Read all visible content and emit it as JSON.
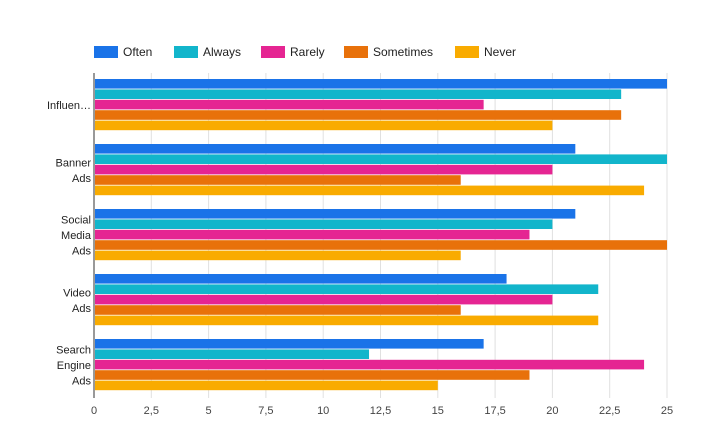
{
  "chart_data": {
    "type": "bar",
    "orientation": "horizontal",
    "title": "",
    "xlabel": "",
    "ylabel": "",
    "categories": [
      [
        "Influen…"
      ],
      [
        "Banner",
        "Ads"
      ],
      [
        "Social",
        "Media",
        "Ads"
      ],
      [
        "Video",
        "Ads"
      ],
      [
        "Search",
        "Engine",
        "Ads"
      ]
    ],
    "series": [
      {
        "name": "Often",
        "color": "#1a73e8",
        "values": [
          25,
          21,
          21,
          18,
          17
        ]
      },
      {
        "name": "Always",
        "color": "#12b5cb",
        "values": [
          23,
          25,
          20,
          22,
          12
        ]
      },
      {
        "name": "Rarely",
        "color": "#e52592",
        "values": [
          17,
          20,
          19,
          20,
          24
        ]
      },
      {
        "name": "Sometimes",
        "color": "#e8710a",
        "values": [
          23,
          16,
          25,
          16,
          19
        ]
      },
      {
        "name": "Never",
        "color": "#f9ab00",
        "values": [
          20,
          24,
          16,
          22,
          15
        ]
      }
    ],
    "xlim": [
      0,
      25
    ],
    "xticks": [
      0,
      2.5,
      5,
      7.5,
      10,
      12.5,
      15,
      17.5,
      20,
      22.5,
      25
    ],
    "xtick_labels": [
      "0",
      "2,5",
      "5",
      "7,5",
      "10",
      "12,5",
      "15",
      "17,5",
      "20",
      "22,5",
      "25"
    ],
    "grid": true,
    "legend_position": "top-left"
  }
}
